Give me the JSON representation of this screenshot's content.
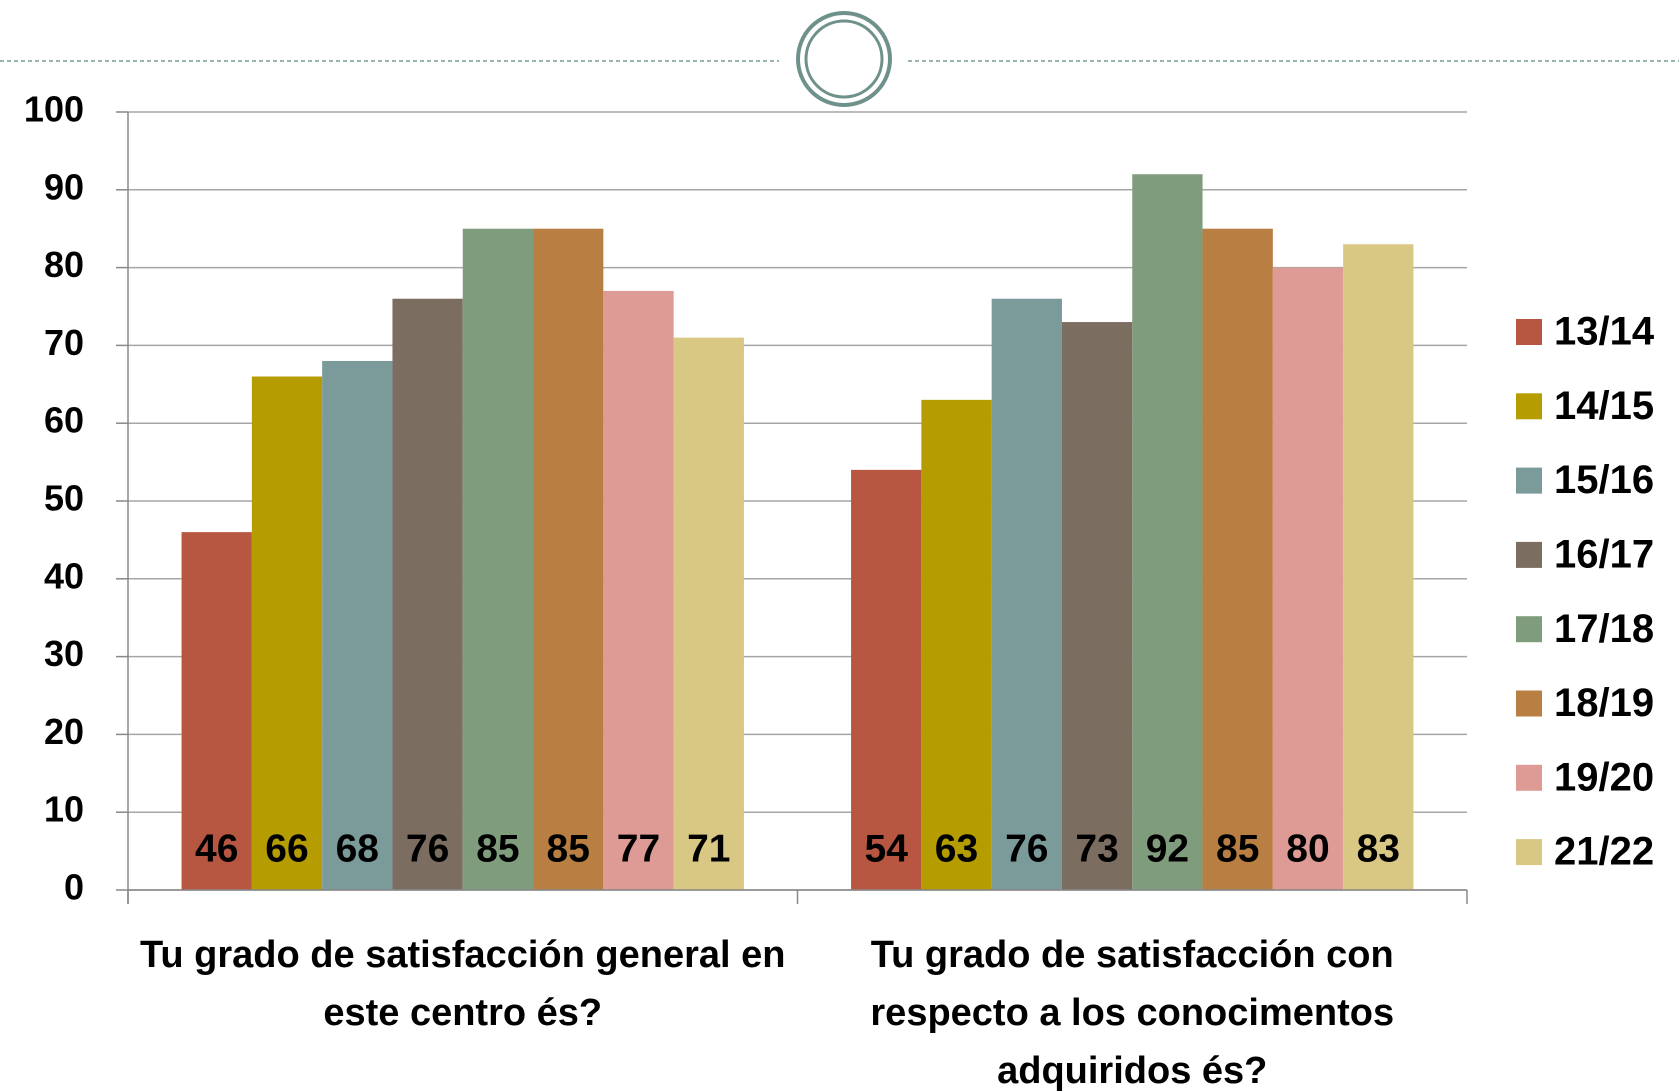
{
  "chart_data": {
    "type": "bar",
    "categories": [
      "Tu grado de satisfacción general en este centro és?",
      "Tu grado de satisfacción con respecto a los conocimentos adquiridos és?"
    ],
    "series": [
      {
        "name": "13/14",
        "color": "#b85741",
        "values": [
          46,
          54
        ]
      },
      {
        "name": "14/15",
        "color": "#b59c00",
        "values": [
          66,
          63
        ]
      },
      {
        "name": "15/16",
        "color": "#7b9a9a",
        "values": [
          68,
          76
        ]
      },
      {
        "name": "16/17",
        "color": "#7b6d60",
        "values": [
          76,
          73
        ]
      },
      {
        "name": "17/18",
        "color": "#7f9c7c",
        "values": [
          85,
          92
        ]
      },
      {
        "name": "18/19",
        "color": "#b97e41",
        "values": [
          85,
          85
        ]
      },
      {
        "name": "19/20",
        "color": "#de9a94",
        "values": [
          77,
          80
        ]
      },
      {
        "name": "21/22",
        "color": "#d9c884",
        "values": [
          71,
          83
        ]
      }
    ],
    "ylim": [
      0,
      100
    ],
    "yticks": [
      0,
      10,
      20,
      30,
      40,
      50,
      60,
      70,
      80,
      90,
      100
    ],
    "grid": true,
    "legend": "right"
  }
}
